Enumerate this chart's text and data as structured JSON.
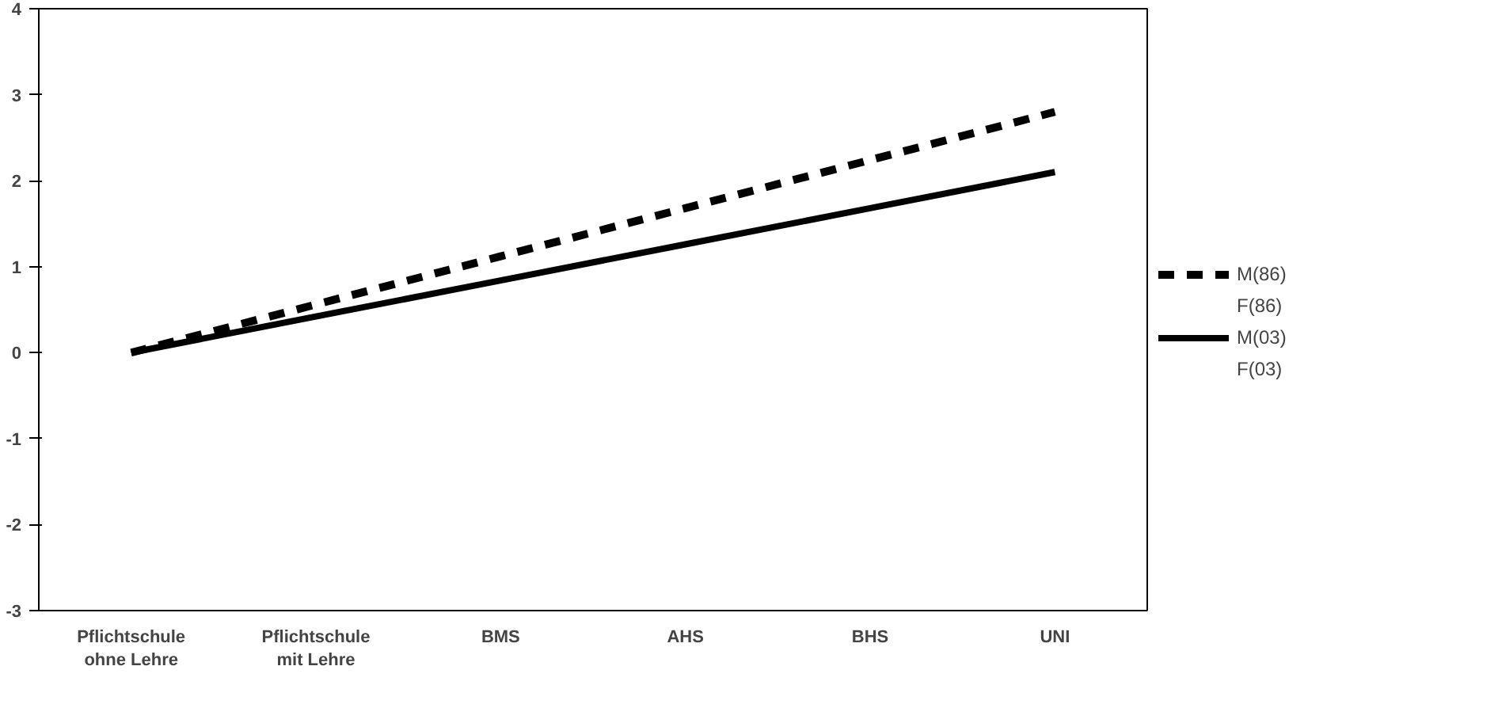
{
  "chart_data": {
    "type": "line",
    "categories": [
      "Pflichtschule\nohne Lehre",
      "Pflichtschule\nmit Lehre",
      "BMS",
      "AHS",
      "BHS",
      "UNI"
    ],
    "series": [
      {
        "name": "M(86)",
        "color": "#000000",
        "line_style": "dashed",
        "values": [
          0,
          0.56,
          1.12,
          1.68,
          2.24,
          2.8
        ]
      },
      {
        "name": "M(03)",
        "color": "#000000",
        "line_style": "solid",
        "values": [
          0,
          0.42,
          0.84,
          1.26,
          1.68,
          2.1
        ]
      }
    ],
    "annotations": [
      "F(86)",
      "F(03)"
    ],
    "ylim": [
      -3,
      4
    ],
    "yticks": [
      -3,
      -2,
      -1,
      0,
      1,
      2,
      3,
      4
    ],
    "grid": false,
    "legend": "right",
    "marker": "none"
  }
}
